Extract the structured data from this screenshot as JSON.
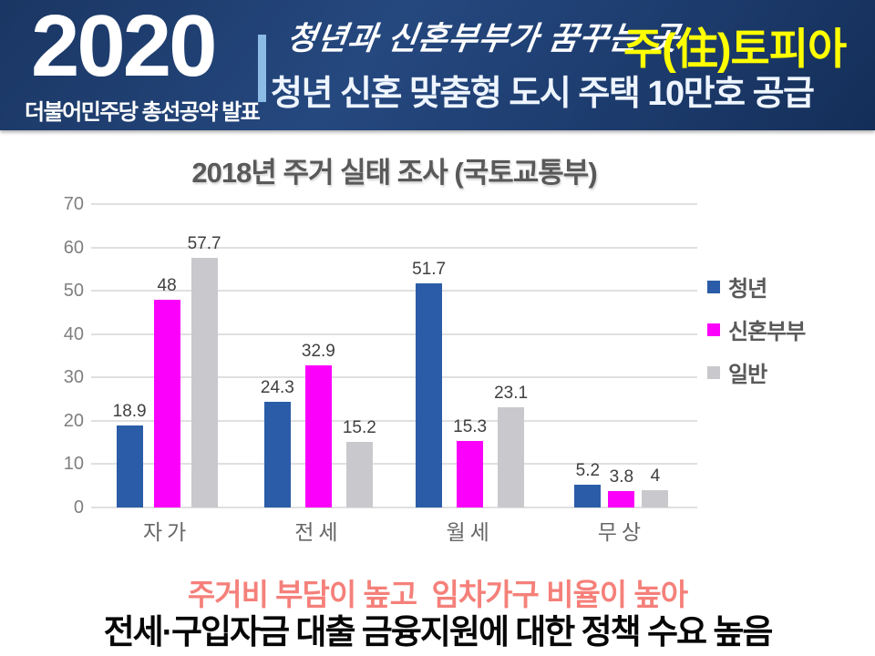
{
  "header": {
    "year": "2020",
    "org": "더불어민주당 총선공약 발표",
    "tagline_script": "청년과 신혼부부가 꿈꾸는 곳",
    "tagline_highlight": "주(住)토피아",
    "headline": "청년 신혼 맞춤형 도시 주택 10만호 공급",
    "bg_color": "#1d3c6e",
    "highlight_color": "#ffff00"
  },
  "chart_data": {
    "type": "bar",
    "title": "2018년 주거 실태 조사 (국토교통부)",
    "categories": [
      "자가",
      "전세",
      "월세",
      "무상"
    ],
    "series": [
      {
        "name": "청년",
        "color": "#2b5ca8",
        "values": [
          18.9,
          24.3,
          51.7,
          5.2
        ]
      },
      {
        "name": "신혼부부",
        "color": "#fb00fb",
        "values": [
          48,
          32.9,
          15.3,
          3.8
        ]
      },
      {
        "name": "일반",
        "color": "#c9c9cd",
        "values": [
          57.7,
          15.2,
          23.1,
          4
        ]
      }
    ],
    "xlabel": "",
    "ylabel": "",
    "ylim": [
      0,
      70
    ],
    "ytick_step": 10,
    "grid": true,
    "legend_position": "right"
  },
  "footer": {
    "line1": "주거비 부담이 높고  임차가구 비율이 높아",
    "line2": "전세·구입자금 대출 금융지원에 대한 정책 수요 높음",
    "line1_color": "#f5807a"
  }
}
